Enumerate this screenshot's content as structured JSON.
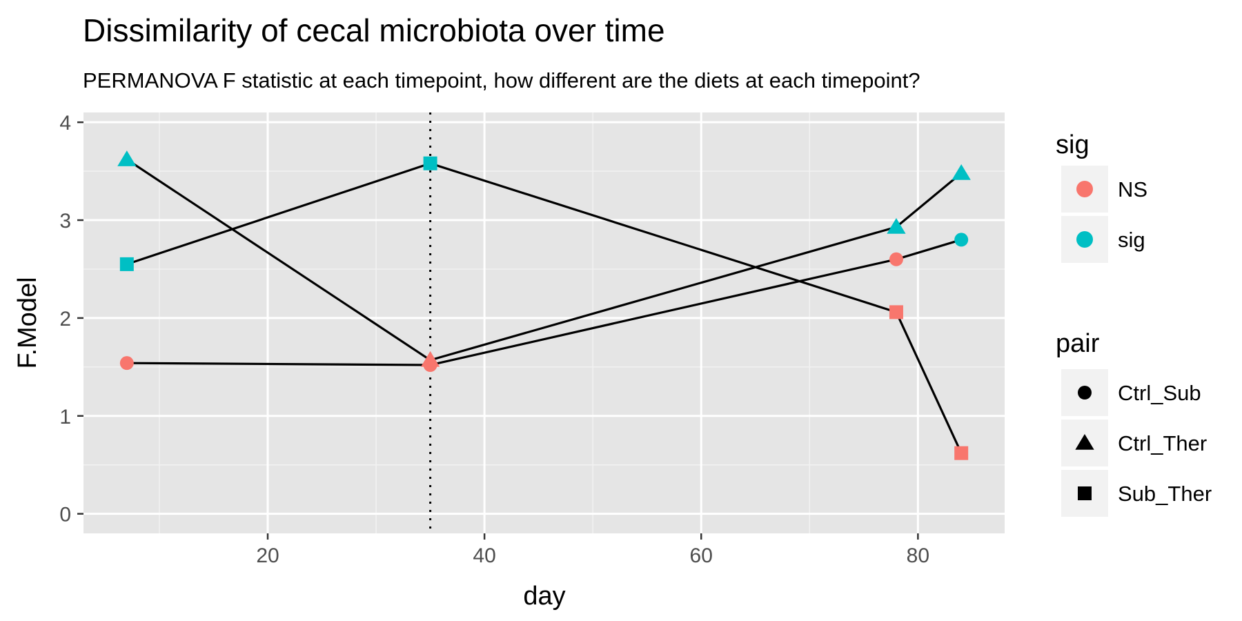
{
  "chart_data": {
    "type": "line",
    "title": "Dissimilarity of cecal microbiota over time",
    "subtitle": "PERMANOVA F statistic at each timepoint, how different are the diets at each timepoint?",
    "xlabel": "day",
    "ylabel": "F.Model",
    "xlim": [
      3,
      88
    ],
    "ylim": [
      -0.2,
      4.1
    ],
    "x_ticks": [
      20,
      40,
      60,
      80
    ],
    "x_tick_labels": [
      "20",
      "40",
      "60",
      "80"
    ],
    "y_ticks": [
      0,
      1,
      2,
      3,
      4
    ],
    "y_tick_labels": [
      "0",
      "1",
      "2",
      "3",
      "4"
    ],
    "grid": true,
    "vline": {
      "x": 35,
      "style": "dotted"
    },
    "line_color": "#000000",
    "series": [
      {
        "pair": "Ctrl_Sub",
        "points": [
          {
            "x": 7,
            "y": 1.54,
            "sig": "NS"
          },
          {
            "x": 35,
            "y": 1.52,
            "sig": "NS"
          },
          {
            "x": 78,
            "y": 2.6,
            "sig": "NS"
          },
          {
            "x": 84,
            "y": 2.8,
            "sig": "sig"
          }
        ]
      },
      {
        "pair": "Ctrl_Ther",
        "points": [
          {
            "x": 7,
            "y": 3.62,
            "sig": "sig"
          },
          {
            "x": 35,
            "y": 1.57,
            "sig": "NS"
          },
          {
            "x": 78,
            "y": 2.93,
            "sig": "sig"
          },
          {
            "x": 84,
            "y": 3.48,
            "sig": "sig"
          }
        ]
      },
      {
        "pair": "Sub_Ther",
        "points": [
          {
            "x": 7,
            "y": 2.55,
            "sig": "sig"
          },
          {
            "x": 35,
            "y": 3.58,
            "sig": "sig"
          },
          {
            "x": 78,
            "y": 2.06,
            "sig": "NS"
          },
          {
            "x": 84,
            "y": 0.62,
            "sig": "NS"
          }
        ]
      }
    ],
    "legends": {
      "color": {
        "title": "sig",
        "entries": [
          {
            "label": "NS",
            "color": "#F8766D"
          },
          {
            "label": "sig",
            "color": "#00BFC4"
          }
        ]
      },
      "shape": {
        "title": "pair",
        "entries": [
          {
            "label": "Ctrl_Sub",
            "shape": "circle"
          },
          {
            "label": "Ctrl_Ther",
            "shape": "triangle"
          },
          {
            "label": "Sub_Ther",
            "shape": "square"
          }
        ]
      },
      "placement": "right"
    },
    "colors": {
      "panel": "#E5E5E5",
      "grid": "#FFFFFF",
      "axis_text": "#4D4D4D",
      "text": "#000000"
    }
  }
}
